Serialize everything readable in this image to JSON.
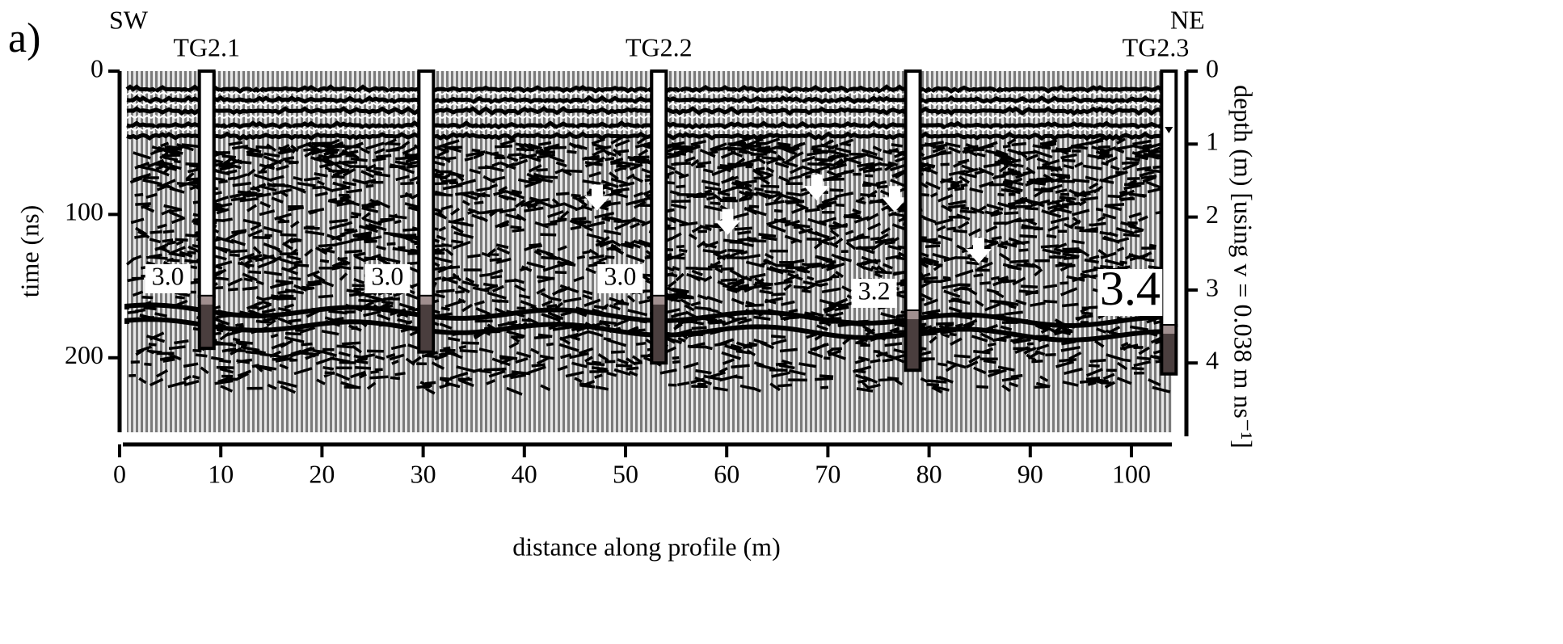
{
  "chart_data": {
    "type": "radargram",
    "panel_label": "a)",
    "left_direction": "SW",
    "right_direction": "NE",
    "xlabel": "distance along profile (m)",
    "ylabel": "time (ns)",
    "y2label": "depth (m) [using v = 0.038 m ns⁻¹]",
    "xlim": [
      0,
      104
    ],
    "xticks": [
      0,
      10,
      20,
      30,
      40,
      50,
      60,
      70,
      80,
      90,
      100
    ],
    "ylim": [
      0,
      252
    ],
    "yticks": [
      0,
      100,
      200
    ],
    "y2lim": [
      0,
      4.95
    ],
    "y2ticks": [
      0,
      1,
      2,
      3,
      4
    ],
    "boreholes": {
      "names": [
        "TG2.1",
        null,
        "TG2.2",
        null,
        "TG2.3"
      ],
      "x": [
        8.6,
        30.3,
        53.3,
        78.4,
        103.7
      ],
      "depth": [
        3.0,
        3.0,
        3.0,
        3.2,
        3.4
      ],
      "depth_labels": [
        "3.0",
        "3.0",
        "3.0",
        "3.2",
        "3.4"
      ],
      "bottom": [
        3.8,
        3.85,
        4.0,
        4.1,
        4.15
      ]
    },
    "arrows": {
      "x": [
        47.2,
        60.1,
        68.9,
        76.6,
        84.9
      ],
      "y": [
        95,
        112,
        88,
        96,
        132
      ]
    }
  }
}
